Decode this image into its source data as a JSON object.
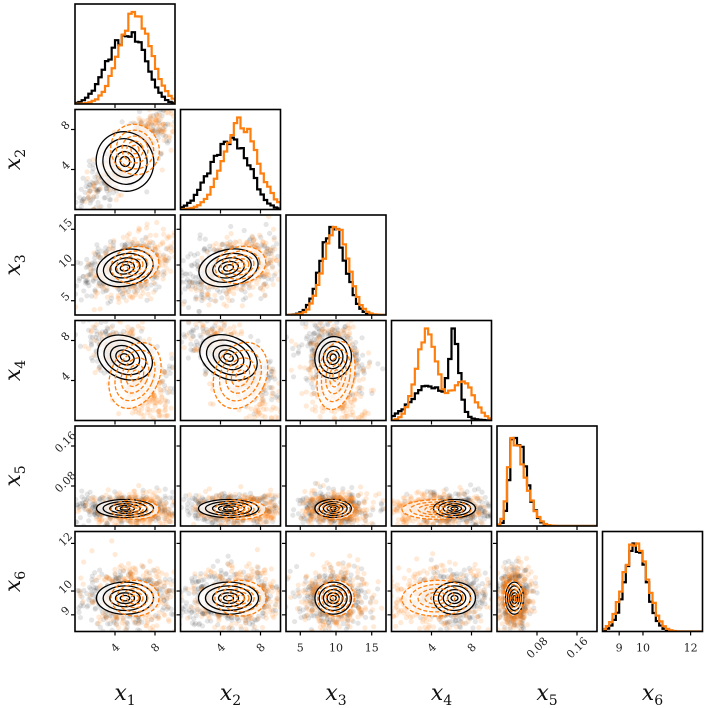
{
  "chart_data": {
    "type": "corner",
    "title": "",
    "variables": [
      {
        "symbol": "x",
        "sub": "1",
        "range": [
          0,
          10
        ]
      },
      {
        "symbol": "x",
        "sub": "2",
        "range": [
          0,
          10
        ]
      },
      {
        "symbol": "x",
        "sub": "3",
        "range": [
          3,
          17
        ]
      },
      {
        "symbol": "x",
        "sub": "4",
        "range": [
          0,
          10
        ]
      },
      {
        "symbol": "x",
        "sub": "5",
        "range": [
          0,
          0.2
        ]
      },
      {
        "symbol": "x",
        "sub": "6",
        "range": [
          8.3,
          12.5
        ]
      }
    ],
    "tick_labels": [
      [
        "4",
        "8"
      ],
      [
        "4",
        "8"
      ],
      [
        "5",
        "10",
        "15"
      ],
      [
        "4",
        "8"
      ],
      [
        "0.08",
        "0.16"
      ],
      [
        "9",
        "10",
        "12"
      ]
    ],
    "tick_values": [
      [
        4,
        8
      ],
      [
        4,
        8
      ],
      [
        5,
        10,
        15
      ],
      [
        4,
        8
      ],
      [
        0.08,
        0.16
      ],
      [
        9,
        10,
        12
      ]
    ],
    "series": [
      {
        "name": "black",
        "color": "#000000",
        "means": [
          5.0,
          4.8,
          9.6,
          6.3,
          0.035,
          9.7
        ],
        "stds": [
          1.9,
          2.0,
          1.7,
          1.4,
          0.012,
          0.45
        ],
        "hist_shape": [
          "plateau",
          "plateau",
          "normal",
          "peak-right",
          "skew-right",
          "normal"
        ]
      },
      {
        "name": "orange",
        "color": "#ff7f0e",
        "means": [
          6.0,
          6.0,
          10.0,
          4.5,
          0.033,
          9.7
        ],
        "stds": [
          1.6,
          1.7,
          1.7,
          2.3,
          0.013,
          0.5
        ],
        "hist_shape": [
          "normal",
          "normal",
          "normal",
          "bimodal",
          "skew-right",
          "normal"
        ]
      }
    ],
    "panel_types": "diagonal: 1-D histograms; lower triangle: 2-D scatter with density contours"
  }
}
